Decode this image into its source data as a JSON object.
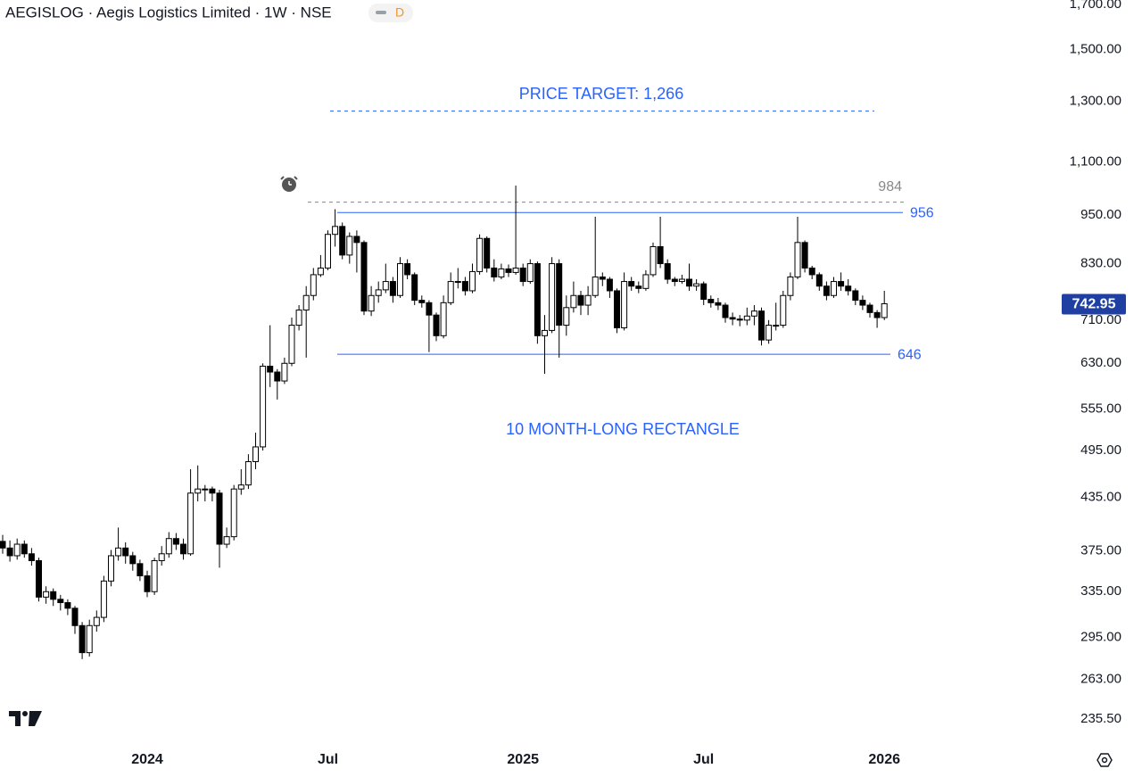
{
  "chart_data": {
    "type": "candlestick",
    "title": "AEGISLOG · Aegis Logistics Limited · 1W · NSE",
    "badge": "D",
    "log_scale": true,
    "grid": false,
    "up_color": "#ffffff",
    "down_color": "#000000",
    "ylim": [
      222,
      1721
    ],
    "yticks": [
      {
        "value": 1700,
        "label": "1,700.00"
      },
      {
        "value": 1500,
        "label": "1,500.00"
      },
      {
        "value": 1300,
        "label": "1,300.00"
      },
      {
        "value": 1100,
        "label": "1,100.00"
      },
      {
        "value": 950,
        "label": "950.00"
      },
      {
        "value": 830,
        "label": "830.00"
      },
      {
        "value": 710,
        "label": "710.00"
      },
      {
        "value": 630,
        "label": "630.00"
      },
      {
        "value": 555,
        "label": "555.00"
      },
      {
        "value": 495,
        "label": "495.00"
      },
      {
        "value": 435,
        "label": "435.00"
      },
      {
        "value": 375,
        "label": "375.00"
      },
      {
        "value": 335,
        "label": "335.00"
      },
      {
        "value": 295,
        "label": "295.00"
      },
      {
        "value": 263,
        "label": "263.00"
      },
      {
        "value": 235.5,
        "label": "235.50"
      }
    ],
    "categories": [
      null,
      null,
      null,
      null,
      null,
      null,
      null,
      null,
      null,
      null,
      null,
      null,
      null,
      null,
      null,
      null,
      null,
      null,
      null,
      null,
      "2024",
      null,
      null,
      null,
      null,
      null,
      null,
      null,
      null,
      null,
      null,
      null,
      null,
      null,
      null,
      null,
      null,
      null,
      null,
      null,
      null,
      null,
      null,
      null,
      null,
      "Jul",
      null,
      null,
      null,
      null,
      null,
      null,
      null,
      null,
      null,
      null,
      null,
      null,
      null,
      null,
      null,
      null,
      null,
      null,
      null,
      null,
      null,
      null,
      null,
      null,
      null,
      null,
      "2025",
      null,
      null,
      null,
      null,
      null,
      null,
      null,
      null,
      null,
      null,
      null,
      null,
      null,
      null,
      null,
      null,
      null,
      null,
      null,
      null,
      null,
      null,
      null,
      null,
      "Jul",
      null,
      null,
      null,
      null,
      null,
      null,
      null,
      null,
      null,
      null,
      null,
      null,
      null,
      null,
      null,
      null,
      null,
      null,
      null,
      null,
      null,
      null,
      null,
      null,
      "2026"
    ],
    "open": [
      385,
      378,
      370,
      382,
      372,
      365,
      330,
      335,
      328,
      325,
      320,
      305,
      283,
      305,
      312,
      345,
      370,
      378,
      370,
      362,
      350,
      335,
      365,
      372,
      388,
      382,
      372,
      440,
      445,
      445,
      440,
      382,
      390,
      445,
      450,
      480,
      500,
      625,
      615,
      600,
      630,
      700,
      730,
      760,
      805,
      820,
      900,
      920,
      850,
      895,
      880,
      728,
      760,
      772,
      790,
      760,
      830,
      805,
      750,
      745,
      720,
      680,
      745,
      790,
      790,
      770,
      812,
      890,
      820,
      800,
      818,
      810,
      820,
      790,
      830,
      680,
      690,
      830,
      700,
      735,
      760,
      740,
      760,
      800,
      795,
      770,
      695,
      790,
      780,
      775,
      805,
      870,
      830,
      795,
      790,
      795,
      780,
      785,
      752,
      745,
      740,
      715,
      712,
      710,
      718,
      728,
      672,
      700,
      700,
      760,
      800,
      880,
      820,
      805,
      780,
      760,
      790,
      780,
      770,
      750,
      740,
      725,
      715
    ],
    "high": [
      392,
      386,
      388,
      386,
      378,
      368,
      340,
      338,
      332,
      328,
      322,
      308,
      310,
      318,
      350,
      376,
      400,
      384,
      374,
      366,
      355,
      368,
      380,
      395,
      394,
      388,
      470,
      475,
      450,
      448,
      444,
      400,
      450,
      470,
      490,
      520,
      630,
      700,
      620,
      640,
      715,
      740,
      780,
      820,
      850,
      910,
      965,
      930,
      905,
      910,
      885,
      780,
      790,
      830,
      800,
      845,
      840,
      810,
      760,
      750,
      725,
      760,
      810,
      820,
      800,
      830,
      900,
      895,
      840,
      830,
      828,
      1030,
      830,
      840,
      835,
      720,
      845,
      840,
      760,
      790,
      770,
      780,
      945,
      810,
      800,
      775,
      810,
      800,
      790,
      815,
      880,
      945,
      840,
      800,
      805,
      830,
      795,
      790,
      760,
      755,
      745,
      725,
      720,
      735,
      740,
      735,
      710,
      745,
      770,
      810,
      945,
      885,
      825,
      810,
      790,
      800,
      810,
      795,
      775,
      760,
      745,
      730,
      770
    ],
    "low": [
      372,
      364,
      366,
      368,
      360,
      326,
      324,
      322,
      318,
      314,
      298,
      278,
      280,
      300,
      308,
      340,
      365,
      362,
      355,
      345,
      330,
      332,
      360,
      368,
      376,
      366,
      370,
      430,
      430,
      430,
      358,
      378,
      386,
      438,
      445,
      470,
      495,
      590,
      570,
      595,
      625,
      690,
      640,
      750,
      800,
      815,
      870,
      840,
      830,
      810,
      720,
      718,
      745,
      765,
      745,
      755,
      795,
      740,
      735,
      650,
      670,
      675,
      740,
      775,
      760,
      765,
      805,
      810,
      790,
      795,
      800,
      805,
      780,
      785,
      665,
      612,
      685,
      640,
      680,
      725,
      720,
      720,
      755,
      780,
      755,
      685,
      690,
      770,
      765,
      770,
      800,
      820,
      785,
      780,
      785,
      770,
      770,
      740,
      735,
      730,
      705,
      700,
      698,
      700,
      700,
      662,
      665,
      690,
      695,
      750,
      795,
      810,
      795,
      770,
      750,
      755,
      770,
      760,
      740,
      730,
      715,
      695,
      710
    ],
    "close": [
      378,
      370,
      382,
      372,
      365,
      330,
      335,
      328,
      325,
      320,
      305,
      283,
      305,
      312,
      345,
      370,
      378,
      370,
      362,
      350,
      335,
      365,
      372,
      388,
      382,
      372,
      440,
      445,
      445,
      440,
      382,
      390,
      445,
      450,
      480,
      500,
      625,
      615,
      600,
      630,
      700,
      730,
      760,
      805,
      820,
      900,
      920,
      850,
      895,
      880,
      728,
      760,
      772,
      790,
      760,
      830,
      805,
      750,
      745,
      720,
      680,
      745,
      790,
      790,
      770,
      812,
      890,
      820,
      800,
      818,
      810,
      820,
      790,
      830,
      680,
      690,
      830,
      700,
      735,
      760,
      740,
      760,
      800,
      795,
      770,
      695,
      790,
      780,
      775,
      805,
      870,
      830,
      795,
      790,
      795,
      780,
      785,
      752,
      745,
      740,
      715,
      712,
      710,
      718,
      728,
      672,
      700,
      700,
      760,
      800,
      880,
      820,
      805,
      780,
      760,
      790,
      780,
      770,
      750,
      740,
      725,
      715,
      742.95
    ],
    "levels": [
      {
        "value": 1266,
        "label": "PRICE TARGET: 1,266",
        "color": "#2962ff",
        "style": "dashed"
      },
      {
        "value": 984,
        "color": "#888888",
        "style": "dashed"
      },
      {
        "value": 956,
        "color": "#2962ff",
        "style": "solid"
      },
      {
        "value": 646,
        "color": "#2962ff",
        "style": "solid"
      }
    ],
    "annotations": [
      "10 MONTH-LONG RECTANGLE"
    ],
    "last_price_color": "#1f3fa3"
  }
}
